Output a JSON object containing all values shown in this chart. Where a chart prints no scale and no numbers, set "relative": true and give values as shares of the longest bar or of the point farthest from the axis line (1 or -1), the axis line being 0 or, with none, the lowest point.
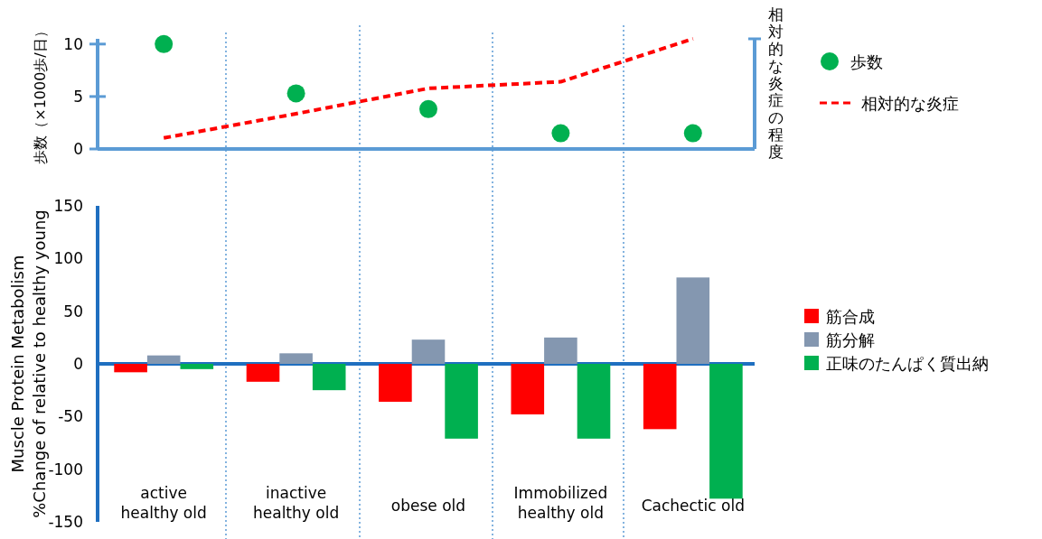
{
  "chart_data": [
    {
      "type": "scatter",
      "ylabel": "歩数（×1000歩/日）",
      "categories": [
        null,
        null,
        null,
        null,
        null
      ],
      "ylim": [
        0,
        10.5
      ],
      "yticks": [
        0,
        5,
        10
      ],
      "legend": "right",
      "series": [
        {
          "name": "歩数",
          "marker": "circle",
          "color": "#00b050",
          "values": [
            10,
            5.3,
            3.8,
            1.5,
            1.5
          ]
        }
      ]
    },
    {
      "type": "line",
      "relative": true,
      "y2label": "相対的な炎症の程度",
      "categories": [
        null,
        null,
        null,
        null,
        null
      ],
      "legend": "right",
      "series": [
        {
          "name": "相対的な炎症",
          "line_style": "dashed",
          "color": "#ff0000",
          "values": [
            0.1,
            0.32,
            0.55,
            0.61,
            1
          ]
        }
      ]
    },
    {
      "type": "bar",
      "ylabel": "Muscle Protein Metabolism\n%Change of relative  to healthy young",
      "categories": [
        "active\nhealthy old",
        "inactive\nhealthy old",
        "obese old",
        "Immobilized\nhealthy old",
        "Cachectic old"
      ],
      "ylim": [
        -150,
        150
      ],
      "yticks": [
        -150,
        -100,
        -50,
        0,
        50,
        100,
        150
      ],
      "legend": "right",
      "ref_lines": [
        {
          "axis": "y",
          "value": 0,
          "color": "#1f6fc0"
        }
      ],
      "series": [
        {
          "name": "筋合成",
          "color": "#ff0000",
          "values": [
            -8,
            -17,
            -36,
            -48,
            -62
          ]
        },
        {
          "name": "筋分解",
          "color": "#8497b0",
          "values": [
            8,
            10,
            23,
            25,
            82
          ]
        },
        {
          "name": "正味のたんぱく質出納",
          "color": "#00b050",
          "values": [
            -5,
            -25,
            -71,
            -71,
            -128
          ]
        }
      ]
    }
  ]
}
